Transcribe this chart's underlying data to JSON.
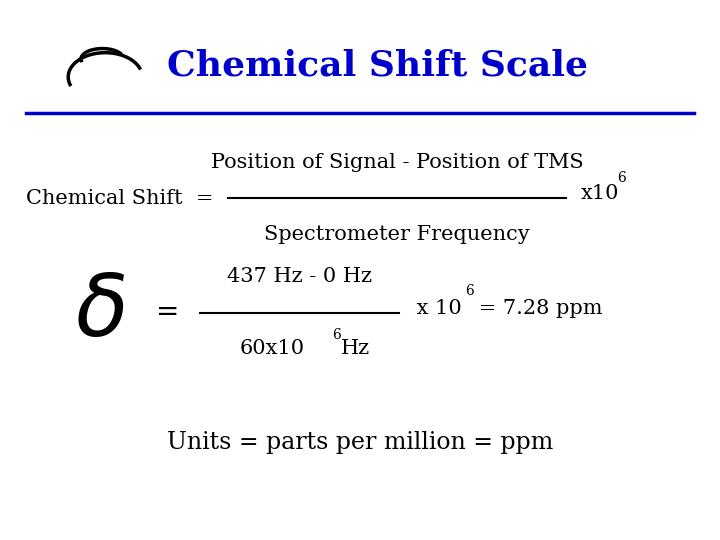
{
  "title": "Chemical Shift Scale",
  "title_color": "#0000CC",
  "bg_color": "#FFFFFF",
  "line_color": "#0000CC",
  "text_color": "#000000",
  "line1_label": "Chemical Shift  =",
  "line1_numerator": "Position of Signal - Position of TMS",
  "line1_denominator": "Spectrometer Frequency",
  "line2_numerator": "437 Hz - 0 Hz",
  "line2_result": " = 7.28 ppm",
  "units_text": "Units = parts per million = ppm",
  "figsize": [
    7.2,
    5.4
  ],
  "dpi": 100
}
